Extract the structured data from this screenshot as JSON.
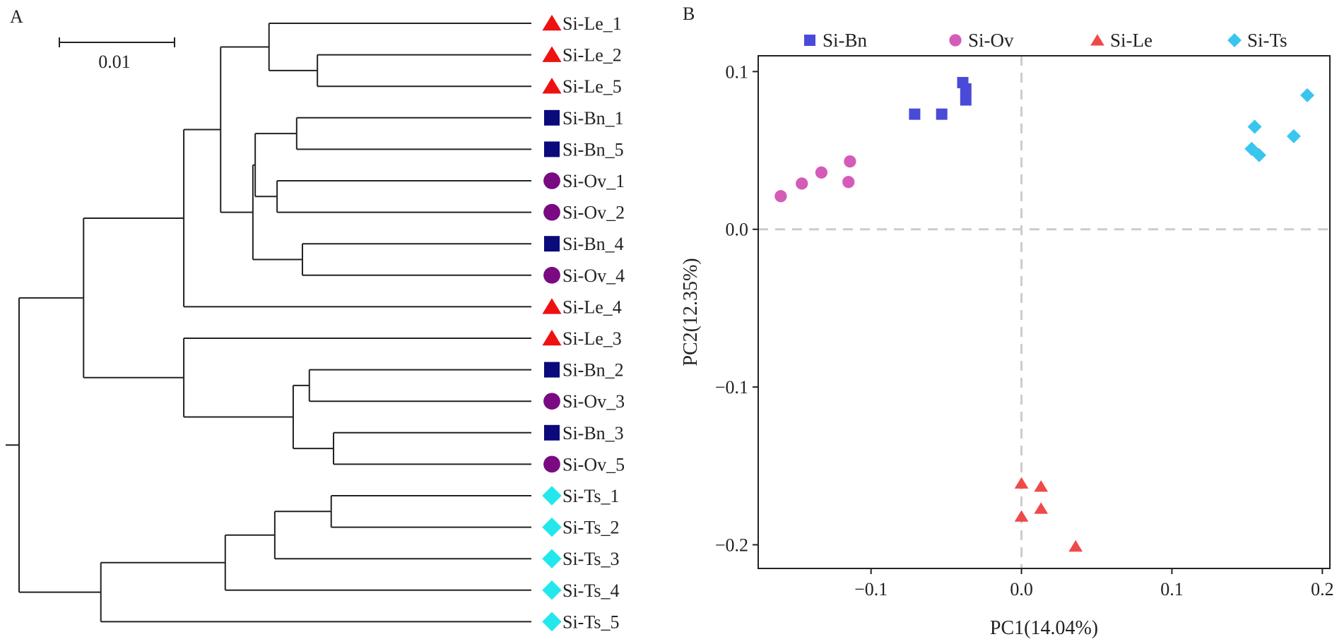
{
  "chart_data": [
    {
      "type": "dendrogram",
      "panel_label": "A",
      "scale_bar_label": "0.01",
      "group_colors": {
        "Si-Le": "#ee1111",
        "Si-Bn": "#0a0a7a",
        "Si-Ov": "#7a0a82",
        "Si-Ts": "#22e8ee"
      },
      "group_markers": {
        "Si-Le": "triangle",
        "Si-Bn": "square",
        "Si-Ov": "circle",
        "Si-Ts": "diamond"
      },
      "leaves": [
        {
          "label": "Si-Le_1",
          "group": "Si-Le"
        },
        {
          "label": "Si-Le_2",
          "group": "Si-Le"
        },
        {
          "label": "Si-Le_5",
          "group": "Si-Le"
        },
        {
          "label": "Si-Bn_1",
          "group": "Si-Bn"
        },
        {
          "label": "Si-Bn_5",
          "group": "Si-Bn"
        },
        {
          "label": "Si-Ov_1",
          "group": "Si-Ov"
        },
        {
          "label": "Si-Ov_2",
          "group": "Si-Ov"
        },
        {
          "label": "Si-Bn_4",
          "group": "Si-Bn"
        },
        {
          "label": "Si-Ov_4",
          "group": "Si-Ov"
        },
        {
          "label": "Si-Le_4",
          "group": "Si-Le"
        },
        {
          "label": "Si-Le_3",
          "group": "Si-Le"
        },
        {
          "label": "Si-Bn_2",
          "group": "Si-Bn"
        },
        {
          "label": "Si-Ov_3",
          "group": "Si-Ov"
        },
        {
          "label": "Si-Bn_3",
          "group": "Si-Bn"
        },
        {
          "label": "Si-Ov_5",
          "group": "Si-Ov"
        },
        {
          "label": "Si-Ts_1",
          "group": "Si-Ts"
        },
        {
          "label": "Si-Ts_2",
          "group": "Si-Ts"
        },
        {
          "label": "Si-Ts_3",
          "group": "Si-Ts"
        },
        {
          "label": "Si-Ts_4",
          "group": "Si-Ts"
        },
        {
          "label": "Si-Ts_5",
          "group": "Si-Ts"
        }
      ],
      "tree": {
        "h": 0.0,
        "c": [
          {
            "h": 0.0056,
            "c": [
              {
                "h": 0.0143,
                "c": [
                  {
                    "h": 0.0175,
                    "c": [
                      {
                        "h": 0.0217,
                        "c": [
                          {
                            "leaf": "Si-Le_1"
                          },
                          {
                            "h": 0.0259,
                            "c": [
                              {
                                "leaf": "Si-Le_2"
                              },
                              {
                                "leaf": "Si-Le_5"
                              }
                            ]
                          }
                        ]
                      },
                      {
                        "h": 0.0203,
                        "c": [
                          {
                            "h": 0.0205,
                            "c": [
                              {
                                "h": 0.0241,
                                "c": [
                                  {
                                    "leaf": "Si-Bn_1"
                                  },
                                  {
                                    "leaf": "Si-Bn_5"
                                  }
                                ]
                              },
                              {
                                "h": 0.0224,
                                "c": [
                                  {
                                    "leaf": "Si-Ov_1"
                                  },
                                  {
                                    "leaf": "Si-Ov_2"
                                  }
                                ]
                              }
                            ]
                          },
                          {
                            "h": 0.0246,
                            "c": [
                              {
                                "leaf": "Si-Bn_4"
                              },
                              {
                                "leaf": "Si-Ov_4"
                              }
                            ]
                          }
                        ]
                      }
                    ]
                  },
                  {
                    "leaf": "Si-Le_4"
                  }
                ]
              },
              {
                "h": 0.0143,
                "c": [
                  {
                    "leaf": "Si-Le_3"
                  },
                  {
                    "h": 0.0238,
                    "c": [
                      {
                        "h": 0.0252,
                        "c": [
                          {
                            "leaf": "Si-Bn_2"
                          },
                          {
                            "leaf": "Si-Ov_3"
                          }
                        ]
                      },
                      {
                        "h": 0.0273,
                        "c": [
                          {
                            "leaf": "Si-Bn_3"
                          },
                          {
                            "leaf": "Si-Ov_5"
                          }
                        ]
                      }
                    ]
                  }
                ]
              }
            ]
          },
          {
            "h": 0.0071,
            "c": [
              {
                "h": 0.0179,
                "c": [
                  {
                    "h": 0.0222,
                    "c": [
                      {
                        "h": 0.0271,
                        "c": [
                          {
                            "leaf": "Si-Ts_1"
                          },
                          {
                            "leaf": "Si-Ts_2"
                          }
                        ]
                      },
                      {
                        "leaf": "Si-Ts_3"
                      }
                    ]
                  },
                  {
                    "leaf": "Si-Ts_4"
                  }
                ]
              },
              {
                "leaf": "Si-Ts_5"
              }
            ]
          }
        ]
      }
    },
    {
      "type": "scatter",
      "panel_label": "B",
      "xlabel": "PC1(14.04%)",
      "ylabel": "PC2(12.35%)",
      "xlim": [
        -0.175,
        0.205
      ],
      "ylim": [
        -0.215,
        0.11
      ],
      "xticks": [
        -0.1,
        0.0,
        0.1,
        0.2
      ],
      "xtick_labels": [
        "−0.1",
        "0.0",
        "0.1",
        "0.2"
      ],
      "yticks": [
        -0.2,
        -0.1,
        0.0,
        0.1
      ],
      "ytick_labels": [
        "−0.2",
        "−0.1",
        "0.0",
        "0.1"
      ],
      "reference_lines": {
        "x": 0,
        "y": 0,
        "style": "dashed",
        "color": "#cccccc"
      },
      "legend_position": "top",
      "series": [
        {
          "name": "Si-Bn",
          "marker": "square",
          "color": "#4a4ad8",
          "points": [
            [
              -0.071,
              0.073
            ],
            [
              -0.053,
              0.073
            ],
            [
              -0.039,
              0.093
            ],
            [
              -0.037,
              0.089
            ],
            [
              -0.037,
              0.082
            ]
          ]
        },
        {
          "name": "Si-Ov",
          "marker": "circle",
          "color": "#d45cb8",
          "points": [
            [
              -0.16,
              0.021
            ],
            [
              -0.146,
              0.029
            ],
            [
              -0.133,
              0.036
            ],
            [
              -0.114,
              0.043
            ],
            [
              -0.115,
              0.03
            ]
          ]
        },
        {
          "name": "Si-Le",
          "marker": "triangle",
          "color": "#ee4a4a",
          "points": [
            [
              0.0,
              -0.161
            ],
            [
              0.013,
              -0.163
            ],
            [
              0.0,
              -0.182
            ],
            [
              0.013,
              -0.177
            ],
            [
              0.036,
              -0.201
            ]
          ]
        },
        {
          "name": "Si-Ts",
          "marker": "diamond",
          "color": "#38c6ee",
          "points": [
            [
              0.155,
              0.065
            ],
            [
              0.19,
              0.085
            ],
            [
              0.153,
              0.051
            ],
            [
              0.158,
              0.047
            ],
            [
              0.181,
              0.059
            ]
          ]
        }
      ]
    }
  ]
}
